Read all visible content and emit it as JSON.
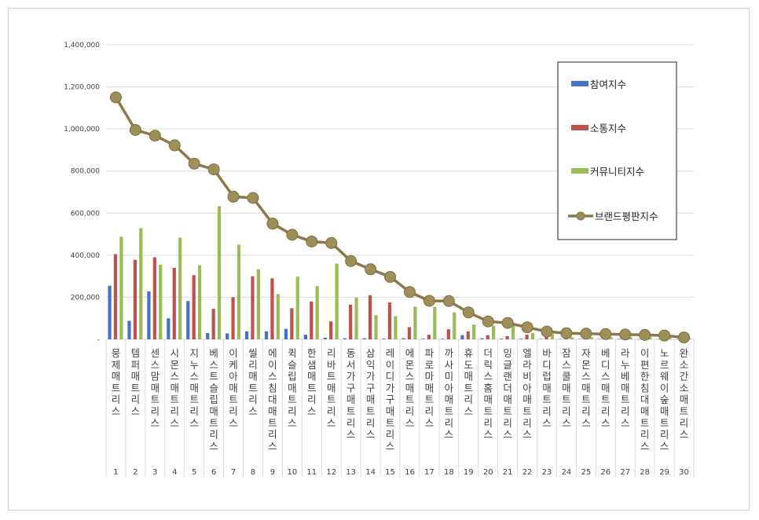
{
  "chart_data": {
    "type": "bar",
    "categories": [
      "뭉제매트리스",
      "템퍼매트리스",
      "센스맘매트리스",
      "시몬스매트리스",
      "지누스매트리스",
      "베스트슬립매트리스",
      "이케아매트리스",
      "씰리매트리스",
      "에이스침대매트리스",
      "퀵슬립매트리스",
      "한샘매트리스",
      "리바트매트리스",
      "동서가구매트리스",
      "삼익가구매트리스",
      "레이디가구매트리스",
      "에몬스매트리스",
      "파로마매트리스",
      "까사미아매트리스",
      "휴도매트리스",
      "더릭스홈매트리스",
      "잉글랜더매트리스",
      "엘라비아매트리스",
      "바디럽매트리스",
      "잠스쿨매트리스",
      "자몬스매트리스",
      "베디스매트리스",
      "라누베매트리스",
      "이편한침대매트리스",
      "노르웨이숲매트리스",
      "완소간소매트리스"
    ],
    "ranks": [
      "1",
      "2",
      "3",
      "4",
      "5",
      "6",
      "7",
      "8",
      "9",
      "10",
      "11",
      "12",
      "13",
      "14",
      "15",
      "16",
      "17",
      "18",
      "19",
      "20",
      "21",
      "22",
      "23",
      "24",
      "25",
      "26",
      "27",
      "28",
      "29",
      "30"
    ],
    "series": [
      {
        "name": "참여지수",
        "kind": "bar",
        "color": "#4472c4",
        "values": [
          255000,
          88000,
          228000,
          100000,
          182000,
          30000,
          28000,
          38000,
          38000,
          50000,
          22000,
          8000,
          5000,
          5000,
          3000,
          5000,
          3000,
          3000,
          20000,
          5000,
          3000,
          3000,
          2000,
          2000,
          2000,
          2000,
          2000,
          1000,
          1000,
          1000
        ]
      },
      {
        "name": "소통지수",
        "kind": "bar",
        "color": "#c0504d",
        "values": [
          405000,
          378000,
          390000,
          340000,
          305000,
          145000,
          200000,
          300000,
          290000,
          148000,
          180000,
          85000,
          165000,
          210000,
          175000,
          58000,
          22000,
          48000,
          38000,
          20000,
          15000,
          22000,
          15000,
          15000,
          12000,
          12000,
          12000,
          10000,
          8000,
          5000
        ]
      },
      {
        "name": "커뮤니티지수",
        "kind": "bar",
        "color": "#9bbb59",
        "values": [
          488000,
          528000,
          355000,
          483000,
          352000,
          633000,
          450000,
          333000,
          215000,
          298000,
          253000,
          360000,
          198000,
          115000,
          110000,
          155000,
          155000,
          128000,
          70000,
          65000,
          65000,
          30000,
          25000,
          10000,
          10000,
          10000,
          10000,
          10000,
          8000,
          5000
        ]
      },
      {
        "name": "브랜드평판지수",
        "kind": "line",
        "color": "#8c7a46",
        "values": [
          1150000,
          995000,
          968000,
          922000,
          835000,
          808000,
          678000,
          672000,
          550000,
          497000,
          465000,
          458000,
          372000,
          333000,
          297000,
          225000,
          183000,
          182000,
          128000,
          85000,
          78000,
          57000,
          37000,
          29000,
          27000,
          25000,
          23000,
          21000,
          18000,
          9000
        ]
      }
    ],
    "yticks": [
      "-",
      "200,000",
      "400,000",
      "600,000",
      "800,000",
      "1,000,000",
      "1,200,000",
      "1,400,000"
    ],
    "ylim": [
      0,
      1400000
    ],
    "grid": true,
    "legend": "right, inside plot"
  }
}
